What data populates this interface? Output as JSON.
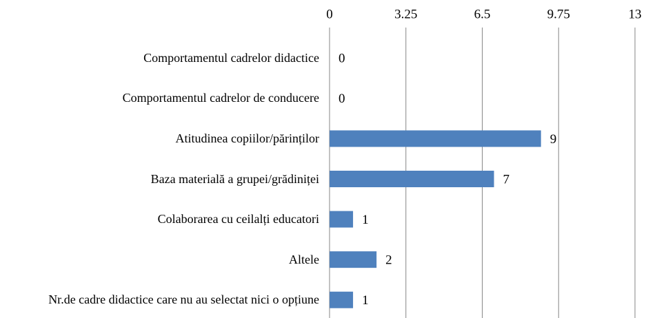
{
  "chart_data": {
    "type": "barh",
    "categories": [
      "Comportamentul cadrelor didactice",
      "Comportamentul cadrelor de conducere",
      "Atitudinea copiilor/părinților",
      "Baza materială a grupei/grădiniței",
      "Colaborarea cu ceilalți educatori",
      "Altele",
      "Nr.de cadre didactice care nu au selectat nici o opțiune"
    ],
    "values": [
      0,
      0,
      9,
      7,
      1,
      2,
      1
    ],
    "color": "#4f81bd",
    "xlim": [
      0,
      13
    ],
    "xticks": [
      0,
      3.25,
      6.5,
      9.75,
      13
    ],
    "grid": true
  }
}
